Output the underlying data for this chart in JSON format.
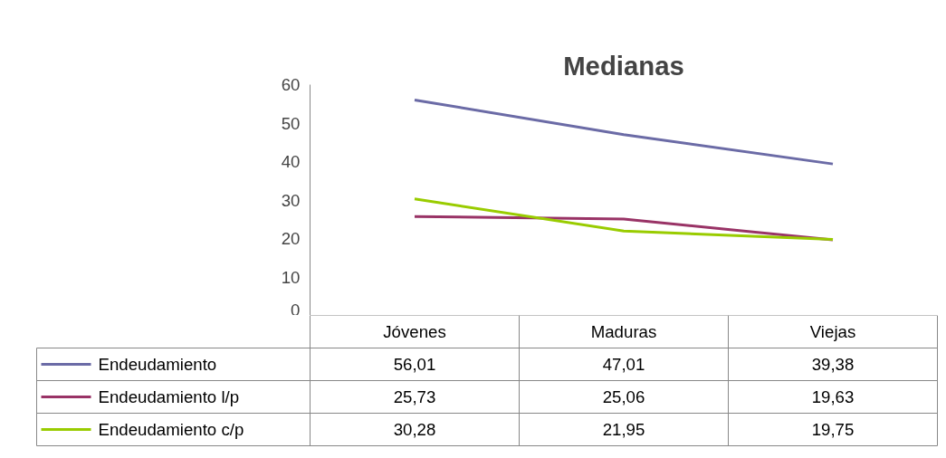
{
  "chart_data": {
    "type": "line",
    "title": "Medianas",
    "categories": [
      "Jóvenes",
      "Maduras",
      "Viejas"
    ],
    "series": [
      {
        "name": "Endeudamiento",
        "color": "#6b6ba6",
        "values": [
          56.01,
          47.01,
          39.38
        ],
        "value_labels": [
          "56,01",
          "47,01",
          "39,38"
        ]
      },
      {
        "name": "Endeudamiento l/p",
        "color": "#993366",
        "values": [
          25.73,
          25.06,
          19.63
        ],
        "value_labels": [
          "25,73",
          "25,06",
          "19,63"
        ]
      },
      {
        "name": "Endeudamiento c/p",
        "color": "#99cc00",
        "values": [
          30.28,
          21.95,
          19.75
        ],
        "value_labels": [
          "30,28",
          "21,95",
          "19,75"
        ]
      }
    ],
    "ylim": [
      0,
      60
    ],
    "yticks": [
      0,
      10,
      20,
      30,
      40,
      50,
      60
    ],
    "grid": false,
    "legend": "bottom",
    "marker": "none",
    "line_style": "solid"
  }
}
